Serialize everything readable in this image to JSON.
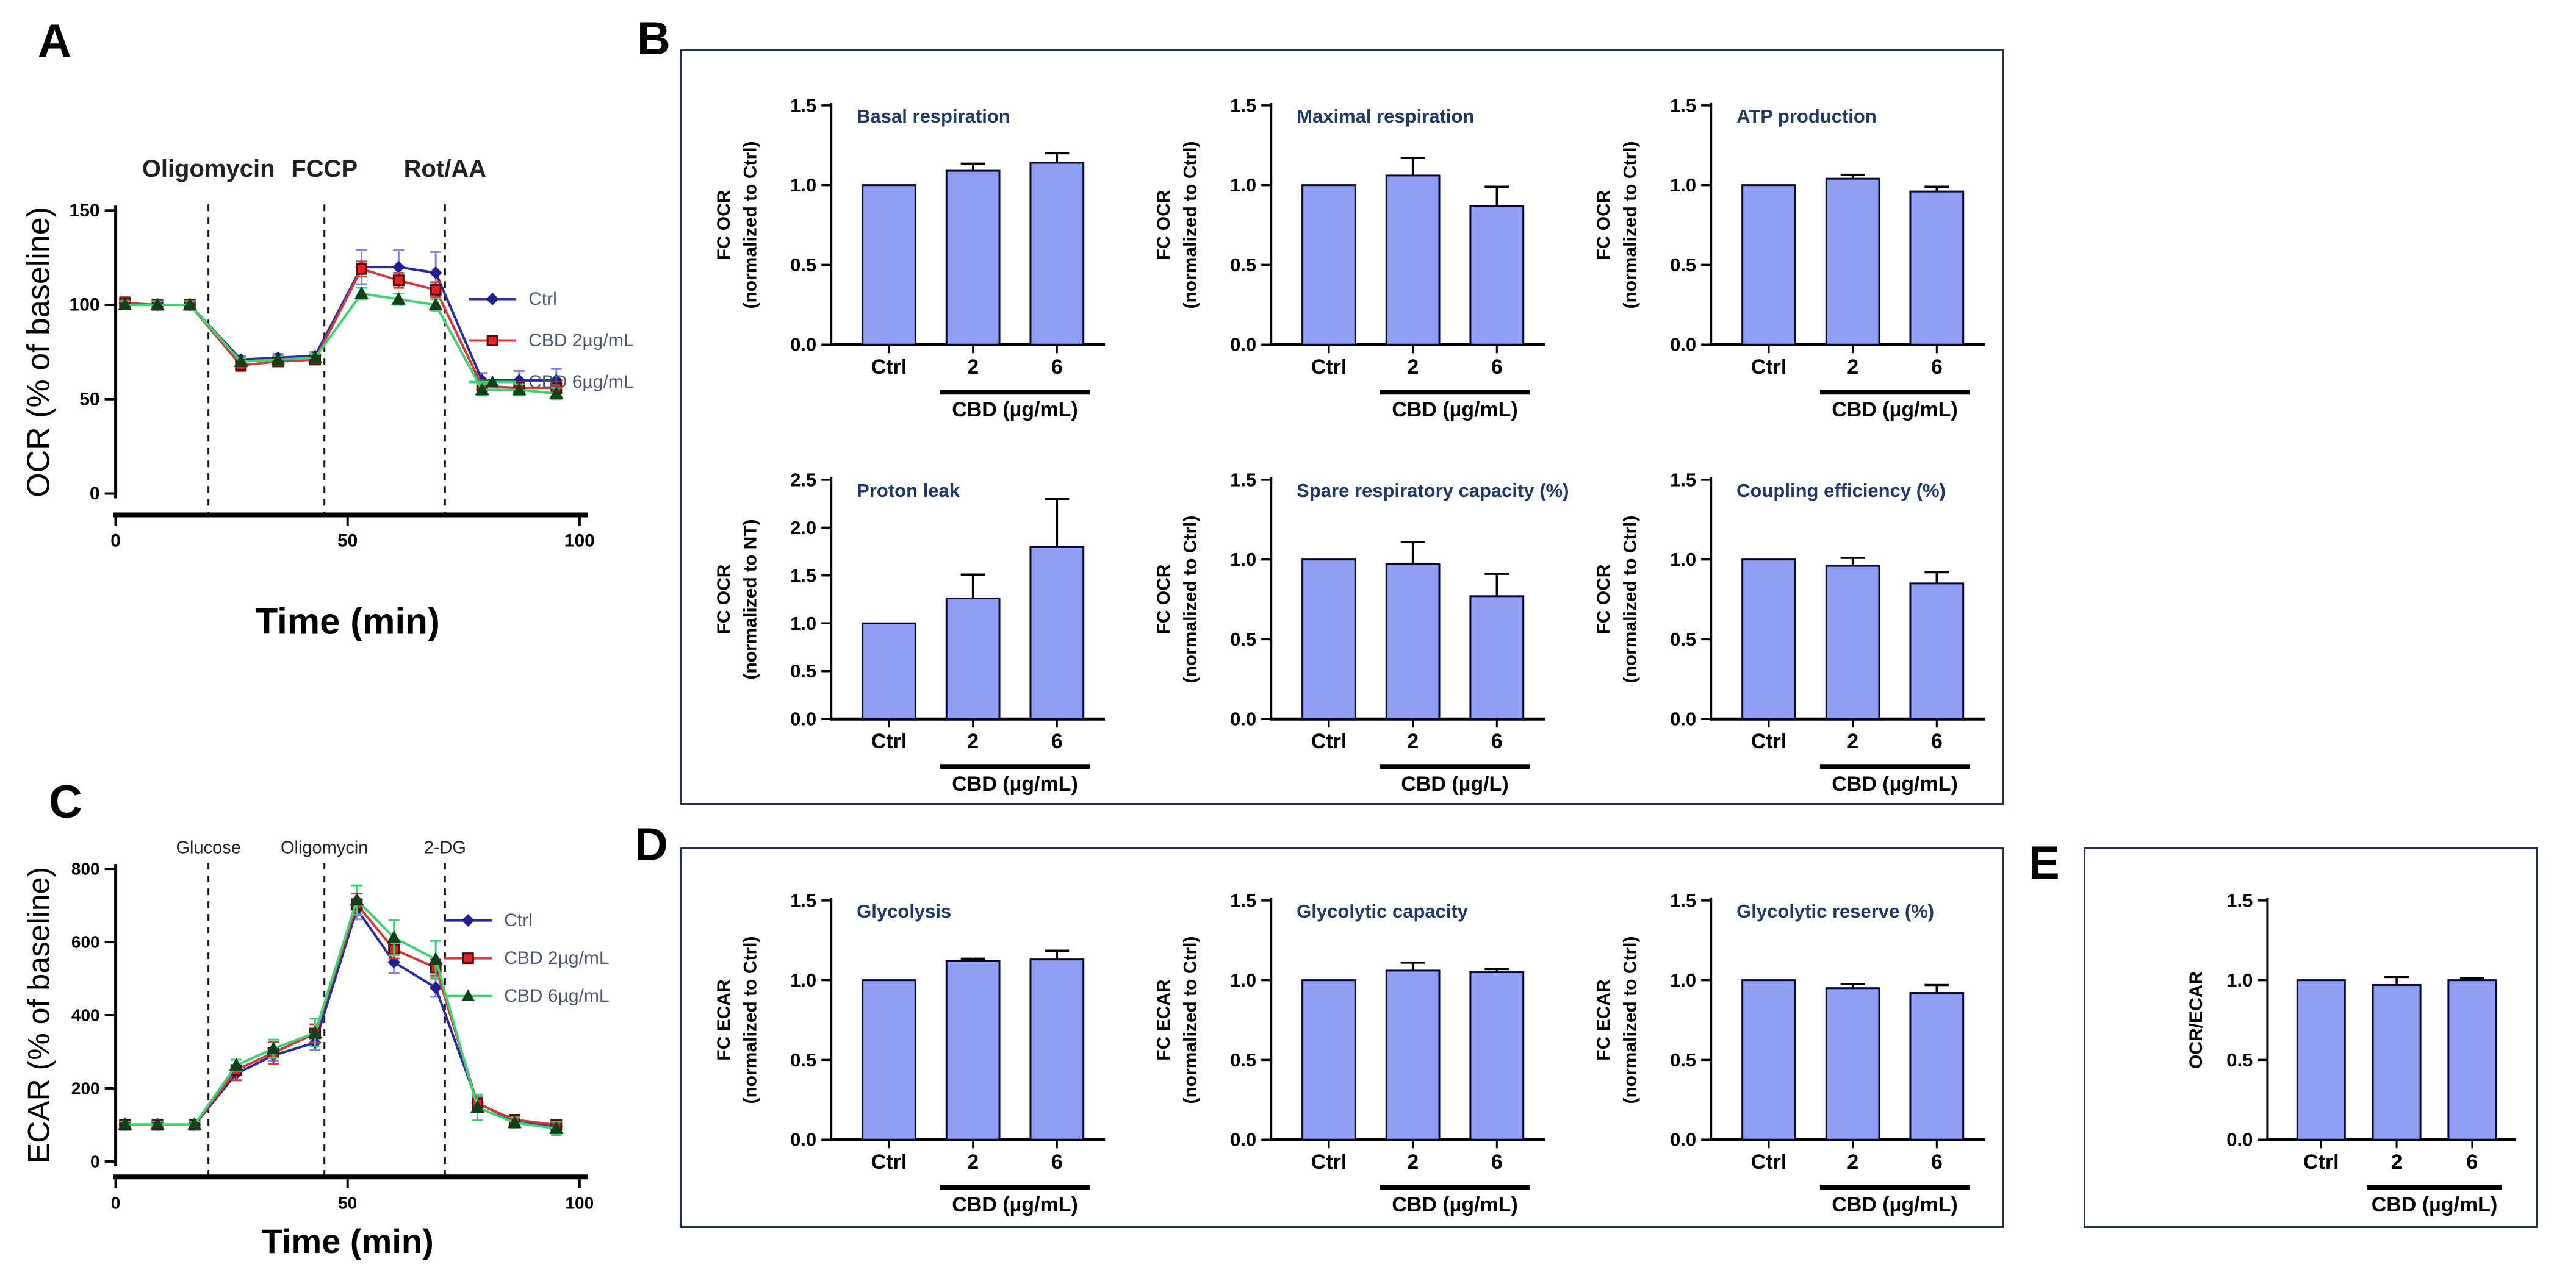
{
  "panels": {
    "A": {
      "letter": "A"
    },
    "B": {
      "letter": "B"
    },
    "C": {
      "letter": "C"
    },
    "D": {
      "letter": "D"
    },
    "E": {
      "letter": "E"
    }
  },
  "colors": {
    "bar_fill": "#8fa0f3",
    "bar_stroke": "#050530",
    "error_bar": "#000000",
    "title_text": "#1f3864",
    "axis": "#000000",
    "legend_text": "#4a5670",
    "box_border": "#233054",
    "ctrl_series": "#2b2b9e",
    "cbd2_series": "#d43a3a",
    "cbd6_series": "#41d173"
  },
  "chart_data": [
    {
      "id": "A",
      "type": "line",
      "xlabel": "Time (min)",
      "ylabel": "OCR (% of baseline)",
      "xlim": [
        0,
        100
      ],
      "ylim": [
        0,
        150
      ],
      "xticks": [
        0,
        50,
        100
      ],
      "yticks": [
        0,
        50,
        100,
        150
      ],
      "events": [
        {
          "x": 20,
          "label": "Oligomycin"
        },
        {
          "x": 45,
          "label": "FCCP"
        },
        {
          "x": 71,
          "label": "Rot/AA"
        }
      ],
      "x": [
        2,
        9,
        16,
        27,
        35,
        43,
        53,
        61,
        69,
        79,
        87,
        95
      ],
      "series": [
        {
          "name": "Ctrl",
          "color": "#2b2b9e",
          "marker": "diamond",
          "marker_fill": "#1f1f8e",
          "marker_stroke": "#1f1f8e",
          "err_color": "#8282e2",
          "values": [
            101,
            100,
            100,
            71,
            72,
            73,
            120,
            120,
            117,
            60,
            60,
            60
          ],
          "errors": [
            3,
            2,
            2,
            2,
            2,
            2,
            9,
            9,
            11,
            4,
            5,
            6
          ]
        },
        {
          "name": "CBD 2µg/mL",
          "color": "#d43a3a",
          "marker": "square",
          "marker_fill": "#e32222",
          "marker_stroke": "#520d16",
          "err_color": "#d43a3a",
          "values": [
            101,
            100,
            100,
            68,
            70,
            71,
            119,
            113,
            108,
            57,
            56,
            56
          ],
          "errors": [
            3,
            2,
            2,
            3,
            2,
            2,
            4,
            4,
            4,
            3,
            3,
            3
          ]
        },
        {
          "name": "CBD 6µg/mL",
          "color": "#41d173",
          "marker": "triangle",
          "marker_fill": "#11401c",
          "marker_stroke": "#11401c",
          "err_color": "#41d173",
          "values": [
            100,
            100,
            100,
            70,
            71,
            72,
            106,
            103,
            100,
            55,
            55,
            53
          ],
          "errors": [
            2,
            2,
            2,
            2,
            2,
            2,
            3,
            3,
            3,
            3,
            3,
            3
          ]
        }
      ],
      "legend": [
        "Ctrl",
        "CBD 2µg/mL",
        "CBD 6µg/mL"
      ],
      "legend_position": "upper right"
    },
    {
      "id": "B1",
      "type": "bar",
      "title": "Basal respiration",
      "ylabel": [
        "FC OCR",
        "(normalized to Ctrl)"
      ],
      "ylim": [
        0,
        1.5
      ],
      "yticks": [
        0,
        0.5,
        1.0,
        1.5
      ],
      "categories": [
        "Ctrl",
        "2",
        "6"
      ],
      "values": [
        1.0,
        1.09,
        1.14
      ],
      "errors": [
        0,
        0.045,
        0.06
      ],
      "group_label": "CBD (µg/mL)"
    },
    {
      "id": "B2",
      "type": "bar",
      "title": "Maximal respiration",
      "ylabel": [
        "FC OCR",
        "(normalized to Ctrl)"
      ],
      "ylim": [
        0,
        1.5
      ],
      "yticks": [
        0,
        0.5,
        1.0,
        1.5
      ],
      "categories": [
        "Ctrl",
        "2",
        "6"
      ],
      "values": [
        1.0,
        1.06,
        0.87
      ],
      "errors": [
        0,
        0.11,
        0.12
      ],
      "group_label": "CBD (µg/mL)"
    },
    {
      "id": "B3",
      "type": "bar",
      "title": "ATP production",
      "ylabel": [
        "FC OCR",
        "(normalized to Ctrl)"
      ],
      "ylim": [
        0,
        1.5
      ],
      "yticks": [
        0,
        0.5,
        1.0,
        1.5
      ],
      "categories": [
        "Ctrl",
        "2",
        "6"
      ],
      "values": [
        1.0,
        1.04,
        0.96
      ],
      "errors": [
        0,
        0.025,
        0.03
      ],
      "group_label": "CBD (µg/mL)"
    },
    {
      "id": "B4",
      "type": "bar",
      "title": "Proton leak",
      "ylabel": [
        "FC OCR",
        "(normalized to NT)"
      ],
      "ylim": [
        0,
        2.5
      ],
      "yticks": [
        0,
        0.5,
        1.0,
        1.5,
        2.0,
        2.5
      ],
      "categories": [
        "Ctrl",
        "2",
        "6"
      ],
      "values": [
        1.0,
        1.26,
        1.8
      ],
      "errors": [
        0,
        0.25,
        0.5
      ],
      "group_label": "CBD (µg/mL)"
    },
    {
      "id": "B5",
      "type": "bar",
      "title": "Spare respiratory capacity (%)",
      "ylabel": [
        "FC OCR",
        "(normalized to Ctrl)"
      ],
      "ylim": [
        0,
        1.5
      ],
      "yticks": [
        0,
        0.5,
        1.0,
        1.5
      ],
      "categories": [
        "Ctrl",
        "2",
        "6"
      ],
      "values": [
        1.0,
        0.97,
        0.77
      ],
      "errors": [
        0,
        0.14,
        0.14
      ],
      "group_label": "CBD (µg/L)"
    },
    {
      "id": "B6",
      "type": "bar",
      "title": "Coupling efficiency (%)",
      "ylabel": [
        "FC OCR",
        "(normalized to Ctrl)"
      ],
      "ylim": [
        0,
        1.5
      ],
      "yticks": [
        0,
        0.5,
        1.0,
        1.5
      ],
      "categories": [
        "Ctrl",
        "2",
        "6"
      ],
      "values": [
        1.0,
        0.96,
        0.85
      ],
      "errors": [
        0,
        0.05,
        0.07
      ],
      "group_label": "CBD (µg/mL)"
    },
    {
      "id": "C",
      "type": "line",
      "xlabel": "Time (min)",
      "ylabel": "ECAR (% of baseline)",
      "xlim": [
        0,
        100
      ],
      "ylim": [
        0,
        800
      ],
      "xticks": [
        0,
        50,
        100
      ],
      "yticks": [
        0,
        200,
        400,
        600,
        800
      ],
      "events": [
        {
          "x": 20,
          "label": "Glucose"
        },
        {
          "x": 45,
          "label": "Oligomycin"
        },
        {
          "x": 71,
          "label": "2-DG"
        }
      ],
      "x": [
        2,
        9,
        17,
        26,
        34,
        43,
        52,
        60,
        69,
        78,
        86,
        95
      ],
      "series": [
        {
          "name": "Ctrl",
          "color": "#2b2b9e",
          "marker": "diamond",
          "marker_fill": "#1f1f8e",
          "marker_stroke": "#1f1f8e",
          "err_color": "#8282e2",
          "values": [
            100,
            100,
            100,
            240,
            290,
            325,
            690,
            545,
            475,
            160,
            110,
            95
          ],
          "errors": [
            8,
            8,
            8,
            18,
            15,
            20,
            28,
            30,
            25,
            18,
            12,
            12
          ]
        },
        {
          "name": "CBD 2µg/mL",
          "color": "#d43a3a",
          "marker": "square",
          "marker_fill": "#e32222",
          "marker_stroke": "#520d16",
          "err_color": "#d43a3a",
          "values": [
            100,
            100,
            100,
            250,
            297,
            350,
            703,
            580,
            530,
            158,
            114,
            100
          ],
          "errors": [
            8,
            8,
            8,
            28,
            30,
            25,
            30,
            25,
            22,
            15,
            12,
            12
          ]
        },
        {
          "name": "CBD 6µg/mL",
          "color": "#41d173",
          "marker": "triangle",
          "marker_fill": "#11401c",
          "marker_stroke": "#11401c",
          "err_color": "#41d173",
          "values": [
            101,
            101,
            101,
            263,
            308,
            352,
            715,
            612,
            553,
            148,
            106,
            90
          ],
          "errors": [
            8,
            8,
            8,
            15,
            25,
            38,
            40,
            48,
            50,
            35,
            14,
            18
          ]
        }
      ],
      "legend": [
        "Ctrl",
        "CBD 2µg/mL",
        "CBD 6µg/mL"
      ],
      "legend_position": "upper right"
    },
    {
      "id": "D1",
      "type": "bar",
      "title": "Glycolysis",
      "ylabel": [
        "FC ECAR",
        "(normalized to Ctrl)"
      ],
      "ylim": [
        0,
        1.5
      ],
      "yticks": [
        0,
        0.5,
        1.0,
        1.5
      ],
      "categories": [
        "Ctrl",
        "2",
        "6"
      ],
      "values": [
        1.0,
        1.12,
        1.13
      ],
      "errors": [
        0,
        0.015,
        0.055
      ],
      "group_label": "CBD (µg/mL)"
    },
    {
      "id": "D2",
      "type": "bar",
      "title": "Glycolytic capacity",
      "ylabel": [
        "FC ECAR",
        "(normalized to Ctrl)"
      ],
      "ylim": [
        0,
        1.5
      ],
      "yticks": [
        0,
        0.5,
        1.0,
        1.5
      ],
      "categories": [
        "Ctrl",
        "2",
        "6"
      ],
      "values": [
        1.0,
        1.06,
        1.05
      ],
      "errors": [
        0,
        0.05,
        0.02
      ],
      "group_label": "CBD (µg/mL)"
    },
    {
      "id": "D3",
      "type": "bar",
      "title": "Glycolytic reserve (%)",
      "ylabel": [
        "FC ECAR",
        "(normalized to Ctrl)"
      ],
      "ylim": [
        0,
        1.5
      ],
      "yticks": [
        0,
        0.5,
        1.0,
        1.5
      ],
      "categories": [
        "Ctrl",
        "2",
        "6"
      ],
      "values": [
        1.0,
        0.95,
        0.92
      ],
      "errors": [
        0,
        0.025,
        0.05
      ],
      "group_label": "CBD (µg/mL)"
    },
    {
      "id": "E1",
      "type": "bar",
      "title": "",
      "ylabel": [
        "OCR/ECAR"
      ],
      "ylim": [
        0,
        1.5
      ],
      "yticks": [
        0,
        0.5,
        1.0,
        1.5
      ],
      "categories": [
        "Ctrl",
        "2",
        "6"
      ],
      "values": [
        1.0,
        0.97,
        1.0
      ],
      "errors": [
        0,
        0.05,
        0.012
      ],
      "group_label": "CBD (µg/mL)"
    }
  ]
}
